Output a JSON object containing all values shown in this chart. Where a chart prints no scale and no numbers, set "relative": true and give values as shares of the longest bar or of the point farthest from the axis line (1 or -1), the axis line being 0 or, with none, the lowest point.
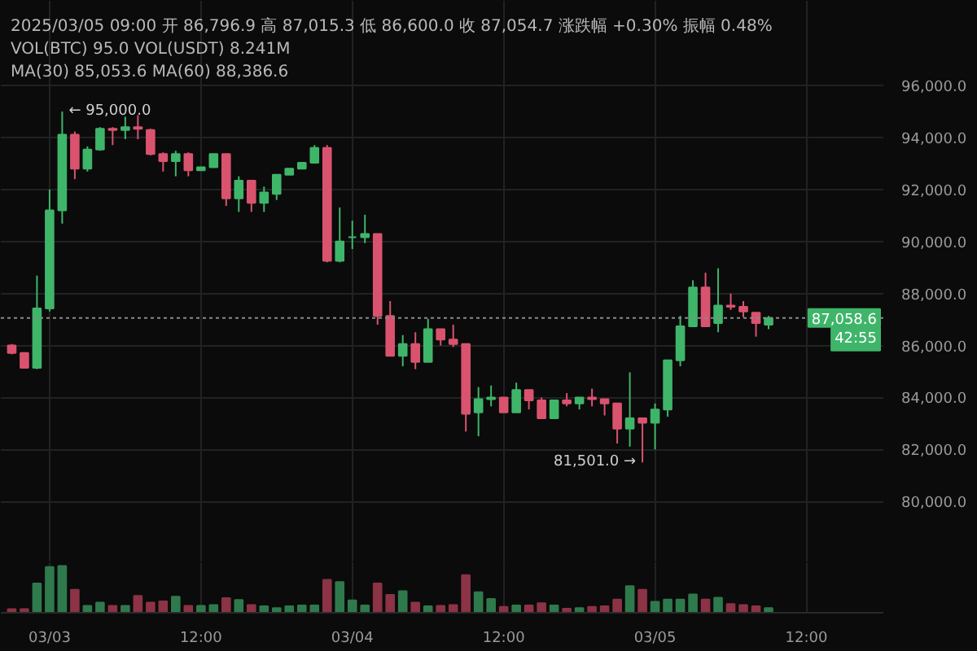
{
  "chart_data": [
    {
      "type": "candlestick",
      "x": [
        "2025-03-02T21:00",
        "2025-03-02T22:00",
        "2025-03-02T23:00",
        "2025-03-03T00:00",
        "2025-03-03T01:00",
        "2025-03-03T02:00",
        "2025-03-03T03:00",
        "2025-03-03T04:00",
        "2025-03-03T05:00",
        "2025-03-03T06:00",
        "2025-03-03T07:00",
        "2025-03-03T08:00",
        "2025-03-03T09:00",
        "2025-03-03T10:00",
        "2025-03-03T11:00",
        "2025-03-03T12:00",
        "2025-03-03T13:00",
        "2025-03-03T14:00",
        "2025-03-03T15:00",
        "2025-03-03T16:00",
        "2025-03-03T17:00",
        "2025-03-03T18:00",
        "2025-03-03T19:00",
        "2025-03-03T20:00",
        "2025-03-03T21:00",
        "2025-03-03T22:00",
        "2025-03-03T23:00",
        "2025-03-04T00:00",
        "2025-03-04T01:00",
        "2025-03-04T02:00",
        "2025-03-04T03:00",
        "2025-03-04T04:00",
        "2025-03-04T05:00",
        "2025-03-04T06:00",
        "2025-03-04T07:00",
        "2025-03-04T08:00",
        "2025-03-04T09:00",
        "2025-03-04T10:00",
        "2025-03-04T11:00",
        "2025-03-04T12:00",
        "2025-03-04T13:00",
        "2025-03-04T14:00",
        "2025-03-04T15:00",
        "2025-03-04T16:00",
        "2025-03-04T17:00",
        "2025-03-04T18:00",
        "2025-03-04T19:00",
        "2025-03-04T20:00",
        "2025-03-04T21:00",
        "2025-03-04T22:00",
        "2025-03-04T23:00",
        "2025-03-05T00:00",
        "2025-03-05T01:00",
        "2025-03-05T02:00",
        "2025-03-05T03:00",
        "2025-03-05T04:00",
        "2025-03-05T05:00",
        "2025-03-05T06:00",
        "2025-03-05T07:00",
        "2025-03-05T08:00",
        "2025-03-05T09:00"
      ],
      "ohlc": [
        [
          86000,
          86060,
          85660,
          85710
        ],
        [
          85710,
          85710,
          85140,
          85140
        ],
        [
          85140,
          88690,
          85090,
          87430
        ],
        [
          87430,
          92000,
          87310,
          91200
        ],
        [
          91200,
          95000,
          90690,
          94110
        ],
        [
          94110,
          94230,
          92400,
          92800
        ],
        [
          92800,
          93660,
          92690,
          93540
        ],
        [
          93540,
          94400,
          93490,
          94340
        ],
        [
          94340,
          94400,
          93710,
          94290
        ],
        [
          94290,
          94800,
          93940,
          94400
        ],
        [
          94400,
          94860,
          93940,
          94340
        ],
        [
          94290,
          94340,
          93310,
          93370
        ],
        [
          93370,
          93430,
          92690,
          93090
        ],
        [
          93090,
          93490,
          92510,
          93370
        ],
        [
          93370,
          93430,
          92510,
          92740
        ],
        [
          92740,
          92860,
          92740,
          92860
        ],
        [
          92860,
          93370,
          92860,
          93370
        ],
        [
          93370,
          93370,
          91370,
          91660
        ],
        [
          91660,
          92510,
          91140,
          92340
        ],
        [
          92340,
          92340,
          91140,
          91490
        ],
        [
          91490,
          92110,
          91140,
          91890
        ],
        [
          91830,
          92570,
          91600,
          92570
        ],
        [
          92570,
          92800,
          92570,
          92800
        ],
        [
          92800,
          93030,
          92800,
          93030
        ],
        [
          93030,
          93710,
          93030,
          93600
        ],
        [
          93600,
          93710,
          89200,
          89260
        ],
        [
          89260,
          91310,
          89200,
          90000
        ],
        [
          90170,
          90800,
          89710,
          90170
        ],
        [
          90170,
          91030,
          89940,
          90290
        ],
        [
          90290,
          90290,
          86800,
          87140
        ],
        [
          87140,
          87710,
          85600,
          85600
        ],
        [
          85600,
          86400,
          85200,
          86060
        ],
        [
          86060,
          86510,
          85090,
          85370
        ],
        [
          85370,
          87030,
          85370,
          86630
        ],
        [
          86630,
          86630,
          86000,
          86230
        ],
        [
          86230,
          86800,
          85940,
          86060
        ],
        [
          86060,
          86060,
          82690,
          83370
        ],
        [
          83430,
          84400,
          82510,
          83940
        ],
        [
          83940,
          84460,
          83660,
          84000
        ],
        [
          84000,
          84000,
          83430,
          83430
        ],
        [
          83430,
          84570,
          83430,
          84290
        ],
        [
          84290,
          84290,
          83540,
          83890
        ],
        [
          83890,
          84000,
          83200,
          83200
        ],
        [
          83200,
          83890,
          83200,
          83890
        ],
        [
          83890,
          84170,
          83660,
          83770
        ],
        [
          83770,
          84000,
          83540,
          84000
        ],
        [
          84000,
          84340,
          83660,
          83940
        ],
        [
          83940,
          83940,
          83310,
          83770
        ],
        [
          83770,
          83770,
          82230,
          82800
        ],
        [
          82800,
          84970,
          82110,
          83200
        ],
        [
          83200,
          83200,
          81501,
          83030
        ],
        [
          83030,
          83770,
          82000,
          83540
        ],
        [
          83540,
          85430,
          83260,
          85430
        ],
        [
          85430,
          87140,
          85200,
          86740
        ],
        [
          86740,
          88510,
          86740,
          88230
        ],
        [
          88230,
          88800,
          86740,
          86740
        ],
        [
          86860,
          88970,
          86510,
          87540
        ],
        [
          87540,
          88000,
          87370,
          87490
        ],
        [
          87490,
          87710,
          87090,
          87310
        ],
        [
          87260,
          87260,
          86340,
          86860
        ],
        [
          86800,
          87140,
          86630,
          87058.6
        ]
      ],
      "colors": [
        "#d9536f",
        "#d9536f",
        "#3fb56a",
        "#3fb56a",
        "#3fb56a",
        "#d9536f",
        "#3fb56a",
        "#3fb56a",
        "#d9536f",
        "#3fb56a",
        "#d9536f",
        "#d9536f",
        "#d9536f",
        "#3fb56a",
        "#d9536f",
        "#3fb56a",
        "#3fb56a",
        "#d9536f",
        "#3fb56a",
        "#d9536f",
        "#3fb56a",
        "#3fb56a",
        "#3fb56a",
        "#3fb56a",
        "#3fb56a",
        "#d9536f",
        "#3fb56a",
        "#3fb56a",
        "#3fb56a",
        "#d9536f",
        "#d9536f",
        "#3fb56a",
        "#d9536f",
        "#3fb56a",
        "#d9536f",
        "#d9536f",
        "#d9536f",
        "#3fb56a",
        "#3fb56a",
        "#d9536f",
        "#3fb56a",
        "#d9536f",
        "#d9536f",
        "#3fb56a",
        "#d9536f",
        "#3fb56a",
        "#d9536f",
        "#d9536f",
        "#d9536f",
        "#3fb56a",
        "#d9536f",
        "#3fb56a",
        "#3fb56a",
        "#3fb56a",
        "#3fb56a",
        "#d9536f",
        "#3fb56a",
        "#d9536f",
        "#d9536f",
        "#d9536f",
        "#3fb56a"
      ],
      "xlim": [
        "2025-03-02T20:08",
        "2025-03-05T18:06"
      ],
      "ylim": [
        77660,
        99260
      ],
      "xticks": [
        {
          "value": "2025-03-03T00:00",
          "label": null
        },
        {
          "value": "2025-03-03T12:00",
          "label": null
        },
        {
          "value": "2025-03-04T00:00",
          "label": null
        },
        {
          "value": "2025-03-04T12:00",
          "label": null
        },
        {
          "value": "2025-03-05T00:00",
          "label": null
        },
        {
          "value": "2025-03-05T12:00",
          "label": null
        }
      ],
      "yticks": [
        {
          "value": 80000,
          "label": "80,000.0"
        },
        {
          "value": 82000,
          "label": "82,000.0"
        },
        {
          "value": 84000,
          "label": "84,000.0"
        },
        {
          "value": 86000,
          "label": "86,000.0"
        },
        {
          "value": 88000,
          "label": "88,000.0"
        },
        {
          "value": 90000,
          "label": "90,000.0"
        },
        {
          "value": 92000,
          "label": "92,000.0"
        },
        {
          "value": 94000,
          "label": "94,000.0"
        },
        {
          "value": 96000,
          "label": "96,000.0"
        }
      ],
      "grid": true,
      "tick_labels": "y",
      "ref_lines": [
        {
          "axis": "y",
          "value": 87058.6,
          "label": "87,058.6\n42:55",
          "color": "#8a8a8a",
          "line_style": "dotted"
        }
      ],
      "annotations": [
        "2025/03/05 09:00 开 86,796.9 高 87,015.3 低 86,600.0 收 87,054.7 涨跌幅 +0.30% 振幅 0.48%",
        "VOL(BTC) 95.0 VOL(USDT) 8.241M",
        "MA(30) 85,053.6 MA(60) 88,386.6",
        {
          "text": "← 95,000.0",
          "x": "2025-03-03T01:00",
          "y": 95000
        },
        {
          "text": "81,501.0 →",
          "x": "2025-03-04T23:00",
          "y": 81501
        }
      ]
    },
    {
      "type": "bar",
      "relative": true,
      "grid": "x",
      "xlim": [
        "2025-03-02T20:08",
        "2025-03-05T18:06"
      ],
      "xticks": [
        {
          "value": "2025-03-03T00:00",
          "label": "03/03"
        },
        {
          "value": "2025-03-03T12:00",
          "label": "12:00"
        },
        {
          "value": "2025-03-04T00:00",
          "label": "03/04"
        },
        {
          "value": "2025-03-04T12:00",
          "label": "12:00"
        },
        {
          "value": "2025-03-05T00:00",
          "label": "03/05"
        },
        {
          "value": "2025-03-05T12:00",
          "label": "12:00"
        }
      ],
      "x": [
        "2025-03-02T21:00",
        "2025-03-02T22:00",
        "2025-03-02T23:00",
        "2025-03-03T00:00",
        "2025-03-03T01:00",
        "2025-03-03T02:00",
        "2025-03-03T03:00",
        "2025-03-03T04:00",
        "2025-03-03T05:00",
        "2025-03-03T06:00",
        "2025-03-03T07:00",
        "2025-03-03T08:00",
        "2025-03-03T09:00",
        "2025-03-03T10:00",
        "2025-03-03T11:00",
        "2025-03-03T12:00",
        "2025-03-03T13:00",
        "2025-03-03T14:00",
        "2025-03-03T15:00",
        "2025-03-03T16:00",
        "2025-03-03T17:00",
        "2025-03-03T18:00",
        "2025-03-03T19:00",
        "2025-03-03T20:00",
        "2025-03-03T21:00",
        "2025-03-03T22:00",
        "2025-03-03T23:00",
        "2025-03-04T00:00",
        "2025-03-04T01:00",
        "2025-03-04T02:00",
        "2025-03-04T03:00",
        "2025-03-04T04:00",
        "2025-03-04T05:00",
        "2025-03-04T06:00",
        "2025-03-04T07:00",
        "2025-03-04T08:00",
        "2025-03-04T09:00",
        "2025-03-04T10:00",
        "2025-03-04T11:00",
        "2025-03-04T12:00",
        "2025-03-04T13:00",
        "2025-03-04T14:00",
        "2025-03-04T15:00",
        "2025-03-04T16:00",
        "2025-03-04T17:00",
        "2025-03-04T18:00",
        "2025-03-04T19:00",
        "2025-03-04T20:00",
        "2025-03-04T21:00",
        "2025-03-04T22:00",
        "2025-03-04T23:00",
        "2025-03-05T00:00",
        "2025-03-05T01:00",
        "2025-03-05T02:00",
        "2025-03-05T03:00",
        "2025-03-05T04:00",
        "2025-03-05T05:00",
        "2025-03-05T06:00",
        "2025-03-05T07:00",
        "2025-03-05T08:00",
        "2025-03-05T09:00"
      ],
      "values": [
        0.06,
        0.06,
        0.62,
        0.98,
        1,
        0.48,
        0.13,
        0.2,
        0.13,
        0.13,
        0.35,
        0.2,
        0.23,
        0.33,
        0.13,
        0.13,
        0.15,
        0.3,
        0.26,
        0.15,
        0.12,
        0.08,
        0.12,
        0.14,
        0.14,
        0.7,
        0.65,
        0.25,
        0.14,
        0.62,
        0.37,
        0.45,
        0.2,
        0.12,
        0.13,
        0.15,
        0.8,
        0.43,
        0.28,
        0.11,
        0.14,
        0.14,
        0.19,
        0.14,
        0.07,
        0.08,
        0.11,
        0.12,
        0.27,
        0.56,
        0.48,
        0.22,
        0.27,
        0.27,
        0.38,
        0.27,
        0.31,
        0.17,
        0.15,
        0.12,
        0.08
      ],
      "colors": [
        "#8c3346",
        "#8c3346",
        "#2f7a4c",
        "#2f7a4c",
        "#2f7a4c",
        "#8c3346",
        "#2f7a4c",
        "#2f7a4c",
        "#8c3346",
        "#2f7a4c",
        "#8c3346",
        "#8c3346",
        "#8c3346",
        "#2f7a4c",
        "#8c3346",
        "#2f7a4c",
        "#2f7a4c",
        "#8c3346",
        "#2f7a4c",
        "#8c3346",
        "#2f7a4c",
        "#2f7a4c",
        "#2f7a4c",
        "#2f7a4c",
        "#2f7a4c",
        "#8c3346",
        "#2f7a4c",
        "#2f7a4c",
        "#2f7a4c",
        "#8c3346",
        "#8c3346",
        "#2f7a4c",
        "#8c3346",
        "#2f7a4c",
        "#8c3346",
        "#8c3346",
        "#8c3346",
        "#2f7a4c",
        "#2f7a4c",
        "#8c3346",
        "#2f7a4c",
        "#8c3346",
        "#8c3346",
        "#2f7a4c",
        "#8c3346",
        "#2f7a4c",
        "#8c3346",
        "#8c3346",
        "#8c3346",
        "#2f7a4c",
        "#8c3346",
        "#2f7a4c",
        "#2f7a4c",
        "#2f7a4c",
        "#2f7a4c",
        "#8c3346",
        "#2f7a4c",
        "#8c3346",
        "#8c3346",
        "#8c3346",
        "#2f7a4c"
      ]
    }
  ]
}
